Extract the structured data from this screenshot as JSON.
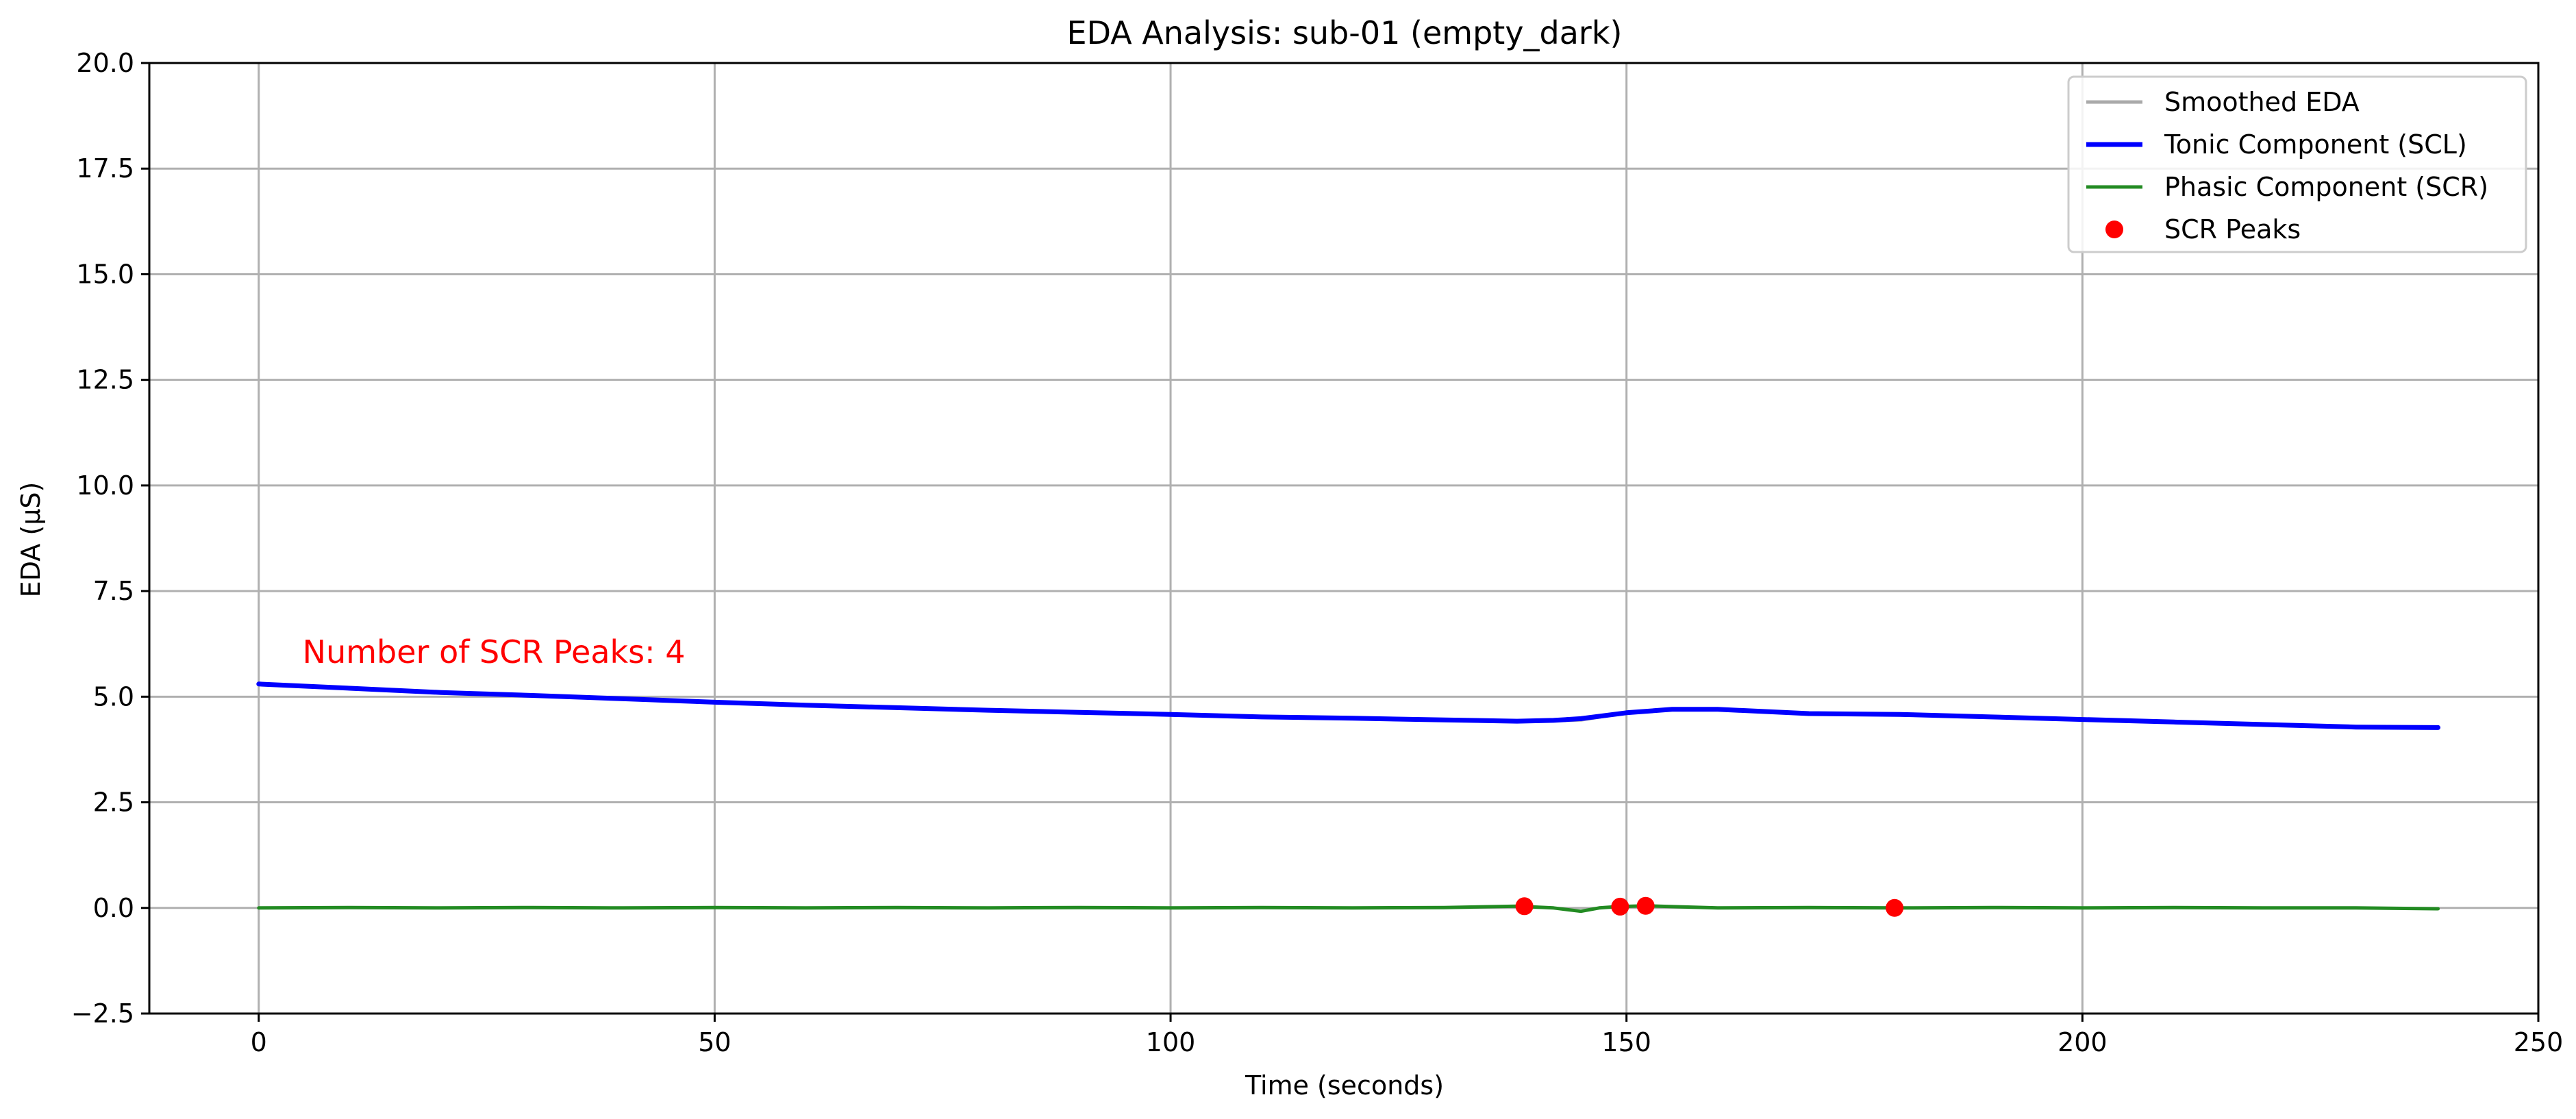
{
  "chart_data": {
    "type": "line",
    "title": "EDA Analysis: sub-01 (empty_dark)",
    "xlabel": "Time (seconds)",
    "ylabel": "EDA (µS)",
    "xlim": [
      -12,
      250
    ],
    "ylim": [
      -2.5,
      20
    ],
    "xticks": [
      0,
      50,
      100,
      150,
      200,
      250
    ],
    "xtick_labels": [
      "0",
      "50",
      "100",
      "150",
      "200",
      "250"
    ],
    "yticks": [
      -2.5,
      0,
      2.5,
      5,
      7.5,
      10,
      12.5,
      15,
      17.5,
      20
    ],
    "ytick_labels": [
      "−2.5",
      "0.0",
      "2.5",
      "5.0",
      "7.5",
      "10.0",
      "12.5",
      "15.0",
      "17.5",
      "20.0"
    ],
    "grid": true,
    "legend_position": "top-right",
    "series": [
      {
        "name": "Smoothed EDA",
        "color": "#aaaaaa",
        "x": [
          0,
          10,
          20,
          30,
          40,
          50,
          60,
          70,
          80,
          90,
          100,
          110,
          120,
          130,
          138,
          145,
          150,
          155,
          160,
          170,
          180,
          190,
          200,
          210,
          220,
          230,
          239
        ],
        "y": [
          5.3,
          5.2,
          5.1,
          5.03,
          4.95,
          4.87,
          4.8,
          4.74,
          4.68,
          4.63,
          4.58,
          4.52,
          4.49,
          4.45,
          4.42,
          4.45,
          4.62,
          4.7,
          4.7,
          4.6,
          4.58,
          4.52,
          4.46,
          4.4,
          4.34,
          4.28,
          4.27
        ]
      },
      {
        "name": "Tonic Component (SCL)",
        "color": "#0000ff",
        "x": [
          0,
          10,
          20,
          30,
          40,
          50,
          60,
          70,
          80,
          90,
          100,
          110,
          120,
          130,
          138,
          142,
          145,
          150,
          155,
          160,
          170,
          180,
          190,
          200,
          210,
          220,
          230,
          239
        ],
        "y": [
          5.3,
          5.2,
          5.1,
          5.03,
          4.95,
          4.87,
          4.8,
          4.74,
          4.68,
          4.63,
          4.58,
          4.52,
          4.49,
          4.45,
          4.42,
          4.44,
          4.48,
          4.62,
          4.7,
          4.7,
          4.6,
          4.58,
          4.52,
          4.46,
          4.4,
          4.34,
          4.28,
          4.27
        ]
      },
      {
        "name": "Phasic Component (SCR)",
        "color": "#228b22",
        "x": [
          0,
          10,
          20,
          30,
          40,
          50,
          60,
          70,
          80,
          90,
          100,
          110,
          120,
          130,
          138,
          142,
          145,
          147,
          149,
          152,
          160,
          170,
          180,
          190,
          200,
          210,
          220,
          230,
          239
        ],
        "y": [
          0.0,
          0.01,
          0.0,
          0.01,
          0.0,
          0.01,
          0.0,
          0.01,
          0.0,
          0.01,
          0.0,
          0.01,
          0.0,
          0.01,
          0.04,
          0.0,
          -0.08,
          0.0,
          0.03,
          0.05,
          0.0,
          0.01,
          0.0,
          0.01,
          0.0,
          0.01,
          0.0,
          0.0,
          -0.02
        ]
      }
    ],
    "peaks": {
      "name": "SCR Peaks",
      "color": "#ff0000",
      "x": [
        138.8,
        149.3,
        152.1,
        179.4
      ],
      "y": [
        0.04,
        0.03,
        0.05,
        0.0
      ]
    },
    "annotation": {
      "text": "Number of SCR Peaks: 4",
      "x": 4.8,
      "y": 5.8,
      "color": "#ff0000"
    },
    "colors": {
      "grid": "#b0b0b0",
      "axes": "#000000",
      "legend_border": "#cccccc"
    }
  }
}
